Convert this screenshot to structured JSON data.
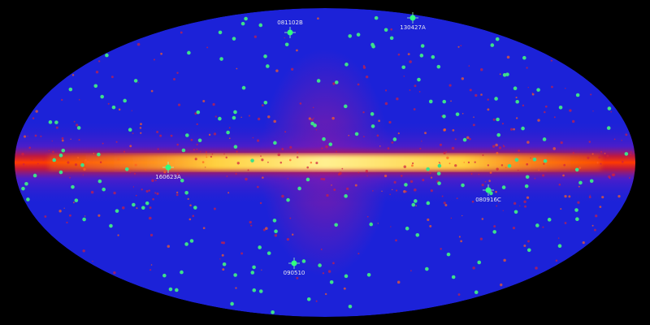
{
  "colors": {
    "background": "#000000",
    "sky": "#1c22d8",
    "plane": "#ff2a00",
    "core": "#ffe060",
    "burst": "#3ee08a"
  },
  "bursts": [
    {
      "name": "081102B"
    },
    {
      "name": "130427A"
    },
    {
      "name": "160623A"
    },
    {
      "name": "080916C"
    },
    {
      "name": "090510"
    }
  ]
}
